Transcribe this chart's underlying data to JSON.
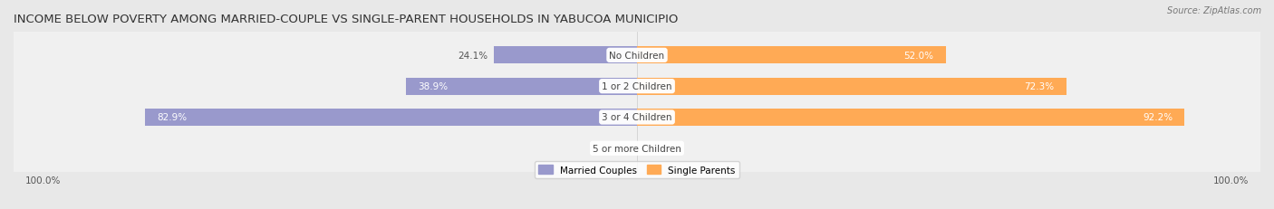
{
  "title": "INCOME BELOW POVERTY AMONG MARRIED-COUPLE VS SINGLE-PARENT HOUSEHOLDS IN YABUCOA MUNICIPIO",
  "source": "Source: ZipAtlas.com",
  "categories": [
    "No Children",
    "1 or 2 Children",
    "3 or 4 Children",
    "5 or more Children"
  ],
  "married_values": [
    24.1,
    38.9,
    82.9,
    0.0
  ],
  "single_values": [
    52.0,
    72.3,
    92.2,
    0.0
  ],
  "married_color": "#9999cc",
  "single_color": "#ffaa55",
  "bg_color": "#e8e8e8",
  "bar_bg_color": "#f0f0f0",
  "title_fontsize": 9.5,
  "label_fontsize": 7.5,
  "axis_label_fontsize": 7.5,
  "bar_height": 0.55
}
